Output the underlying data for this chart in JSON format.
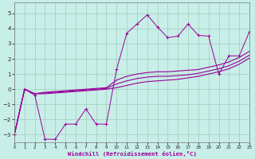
{
  "xlabel": "Windchill (Refroidissement éolien,°C)",
  "background_color": "#c8eee8",
  "grid_color": "#a0ccbc",
  "line_color": "#990099",
  "xlim": [
    0,
    23
  ],
  "ylim": [
    -3.5,
    5.7
  ],
  "xticks": [
    0,
    1,
    2,
    3,
    4,
    5,
    6,
    7,
    8,
    9,
    10,
    11,
    12,
    13,
    14,
    15,
    16,
    17,
    18,
    19,
    20,
    21,
    22,
    23
  ],
  "yticks": [
    -3,
    -2,
    -1,
    0,
    1,
    2,
    3,
    4,
    5
  ],
  "series1_x": [
    0,
    1,
    2,
    3,
    4,
    5,
    6,
    7,
    8,
    9,
    10,
    11,
    12,
    13,
    14,
    15,
    16,
    17,
    18,
    19,
    20,
    21,
    22,
    23
  ],
  "series1_y": [
    -3.0,
    0.0,
    -0.4,
    -3.3,
    -3.3,
    -2.3,
    -2.3,
    -1.3,
    -2.3,
    -2.3,
    1.3,
    3.7,
    4.3,
    4.9,
    4.1,
    3.4,
    3.5,
    4.3,
    3.55,
    3.5,
    1.0,
    2.2,
    2.2,
    3.8
  ],
  "series2_x": [
    0,
    1,
    2,
    3,
    4,
    5,
    6,
    7,
    8,
    9,
    10,
    11,
    12,
    13,
    14,
    15,
    16,
    17,
    18,
    19,
    20,
    21,
    22,
    23
  ],
  "series2_y": [
    -3.0,
    0.0,
    -0.3,
    -0.2,
    -0.15,
    -0.1,
    -0.05,
    0.0,
    0.05,
    0.1,
    0.6,
    0.85,
    1.0,
    1.1,
    1.15,
    1.15,
    1.2,
    1.25,
    1.3,
    1.45,
    1.6,
    1.8,
    2.1,
    2.5
  ],
  "series3_x": [
    0,
    1,
    2,
    3,
    4,
    5,
    6,
    7,
    8,
    9,
    10,
    11,
    12,
    13,
    14,
    15,
    16,
    17,
    18,
    19,
    20,
    21,
    22,
    23
  ],
  "series3_y": [
    -3.0,
    0.0,
    -0.3,
    -0.25,
    -0.2,
    -0.15,
    -0.1,
    -0.05,
    0.0,
    0.05,
    0.35,
    0.55,
    0.7,
    0.8,
    0.85,
    0.85,
    0.9,
    0.95,
    1.05,
    1.2,
    1.35,
    1.55,
    1.85,
    2.25
  ],
  "series4_x": [
    0,
    1,
    2,
    3,
    4,
    5,
    6,
    7,
    8,
    9,
    10,
    11,
    12,
    13,
    14,
    15,
    16,
    17,
    18,
    19,
    20,
    21,
    22,
    23
  ],
  "series4_y": [
    -3.0,
    0.0,
    -0.3,
    -0.3,
    -0.25,
    -0.2,
    -0.15,
    -0.1,
    -0.05,
    0.0,
    0.1,
    0.25,
    0.4,
    0.5,
    0.55,
    0.6,
    0.65,
    0.75,
    0.85,
    1.0,
    1.15,
    1.35,
    1.65,
    2.05
  ]
}
